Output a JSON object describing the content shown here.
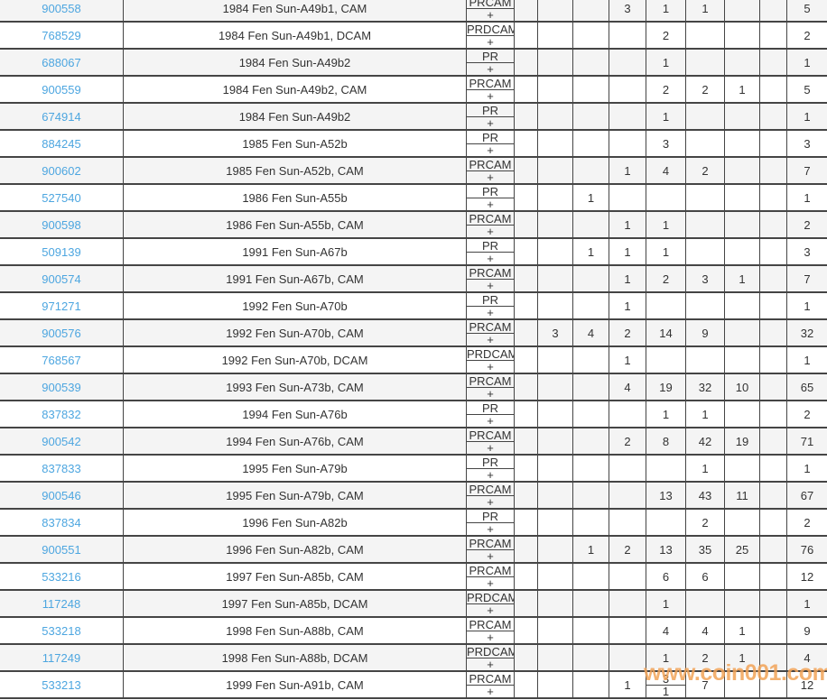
{
  "watermark": {
    "text": "www.coin001.com",
    "color": "#f2a458"
  },
  "colors": {
    "link": "#4da6e0",
    "border": "#454545",
    "stripe": "#f4f4f4",
    "text": "#333333"
  },
  "table": {
    "plus_label": "+",
    "rows": [
      {
        "id": "900558",
        "description": "1984 Fen Sun-A49b1, CAM",
        "designation": "PRCAM",
        "grades": [
          "",
          "",
          "",
          "3",
          "1",
          "1",
          "",
          ""
        ],
        "total": "5"
      },
      {
        "id": "768529",
        "description": "1984 Fen Sun-A49b1, DCAM",
        "designation": "PRDCAM",
        "grades": [
          "",
          "",
          "",
          "",
          "2",
          "",
          "",
          ""
        ],
        "total": "2"
      },
      {
        "id": "688067",
        "description": "1984 Fen Sun-A49b2",
        "designation": "PR",
        "grades": [
          "",
          "",
          "",
          "",
          "1",
          "",
          "",
          ""
        ],
        "total": "1"
      },
      {
        "id": "900559",
        "description": "1984 Fen Sun-A49b2, CAM",
        "designation": "PRCAM",
        "grades": [
          "",
          "",
          "",
          "",
          "2",
          "2",
          "1",
          ""
        ],
        "total": "5"
      },
      {
        "id": "674914",
        "description": "1984 Fen Sun-A49b2",
        "designation": "PR",
        "grades": [
          "",
          "",
          "",
          "",
          "1",
          "",
          "",
          ""
        ],
        "total": "1"
      },
      {
        "id": "884245",
        "description": "1985 Fen Sun-A52b",
        "designation": "PR",
        "grades": [
          "",
          "",
          "",
          "",
          "3",
          "",
          "",
          ""
        ],
        "total": "3"
      },
      {
        "id": "900602",
        "description": "1985 Fen Sun-A52b, CAM",
        "designation": "PRCAM",
        "grades": [
          "",
          "",
          "",
          "1",
          "4",
          "2",
          "",
          ""
        ],
        "total": "7"
      },
      {
        "id": "527540",
        "description": "1986 Fen Sun-A55b",
        "designation": "PR",
        "grades": [
          "",
          "",
          "1",
          "",
          "",
          "",
          "",
          ""
        ],
        "total": "1"
      },
      {
        "id": "900598",
        "description": "1986 Fen Sun-A55b, CAM",
        "designation": "PRCAM",
        "grades": [
          "",
          "",
          "",
          "1",
          "1",
          "",
          "",
          ""
        ],
        "total": "2"
      },
      {
        "id": "509139",
        "description": "1991 Fen Sun-A67b",
        "designation": "PR",
        "grades": [
          "",
          "",
          "1",
          "1",
          "1",
          "",
          "",
          ""
        ],
        "total": "3"
      },
      {
        "id": "900574",
        "description": "1991 Fen Sun-A67b, CAM",
        "designation": "PRCAM",
        "grades": [
          "",
          "",
          "",
          "1",
          "2",
          "3",
          "1",
          ""
        ],
        "total": "7"
      },
      {
        "id": "971271",
        "description": "1992 Fen Sun-A70b",
        "designation": "PR",
        "grades": [
          "",
          "",
          "",
          "1",
          "",
          "",
          "",
          ""
        ],
        "total": "1"
      },
      {
        "id": "900576",
        "description": "1992 Fen Sun-A70b, CAM",
        "designation": "PRCAM",
        "grades": [
          "",
          "3",
          "4",
          "2",
          "14",
          "9",
          "",
          ""
        ],
        "total": "32"
      },
      {
        "id": "768567",
        "description": "1992 Fen Sun-A70b, DCAM",
        "designation": "PRDCAM",
        "grades": [
          "",
          "",
          "",
          "1",
          "",
          "",
          "",
          ""
        ],
        "total": "1"
      },
      {
        "id": "900539",
        "description": "1993 Fen Sun-A73b, CAM",
        "designation": "PRCAM",
        "grades": [
          "",
          "",
          "",
          "4",
          "19",
          "32",
          "10",
          ""
        ],
        "total": "65"
      },
      {
        "id": "837832",
        "description": "1994 Fen Sun-A76b",
        "designation": "PR",
        "grades": [
          "",
          "",
          "",
          "",
          "1",
          "1",
          "",
          ""
        ],
        "total": "2"
      },
      {
        "id": "900542",
        "description": "1994 Fen Sun-A76b, CAM",
        "designation": "PRCAM",
        "grades": [
          "",
          "",
          "",
          "2",
          "8",
          "42",
          "19",
          ""
        ],
        "total": "71"
      },
      {
        "id": "837833",
        "description": "1995 Fen Sun-A79b",
        "designation": "PR",
        "grades": [
          "",
          "",
          "",
          "",
          "",
          "1",
          "",
          ""
        ],
        "total": "1"
      },
      {
        "id": "900546",
        "description": "1995 Fen Sun-A79b, CAM",
        "designation": "PRCAM",
        "grades": [
          "",
          "",
          "",
          "",
          "13",
          "43",
          "11",
          ""
        ],
        "total": "67"
      },
      {
        "id": "837834",
        "description": "1996 Fen Sun-A82b",
        "designation": "PR",
        "grades": [
          "",
          "",
          "",
          "",
          "",
          "2",
          "",
          ""
        ],
        "total": "2"
      },
      {
        "id": "900551",
        "description": "1996 Fen Sun-A82b, CAM",
        "designation": "PRCAM",
        "grades": [
          "",
          "",
          "1",
          "2",
          "13",
          "35",
          "25",
          ""
        ],
        "total": "76"
      },
      {
        "id": "533216",
        "description": "1997 Fen Sun-A85b, CAM",
        "designation": "PRCAM",
        "grades": [
          "",
          "",
          "",
          "",
          "6",
          "6",
          "",
          ""
        ],
        "total": "12"
      },
      {
        "id": "117248",
        "description": "1997 Fen Sun-A85b, DCAM",
        "designation": "PRDCAM",
        "grades": [
          "",
          "",
          "",
          "",
          "1",
          "",
          "",
          ""
        ],
        "total": "1"
      },
      {
        "id": "533218",
        "description": "1998 Fen Sun-A88b, CAM",
        "designation": "PRCAM",
        "grades": [
          "",
          "",
          "",
          "",
          "4",
          "4",
          "1",
          ""
        ],
        "total": "9"
      },
      {
        "id": "117249",
        "description": "1998 Fen Sun-A88b, DCAM",
        "designation": "PRDCAM",
        "grades": [
          "",
          "",
          "",
          "",
          "1",
          "2",
          "1",
          ""
        ],
        "total": "4"
      },
      {
        "id": "533213",
        "description": "1999 Fen Sun-A91b, CAM",
        "designation": "PRCAM",
        "grades": [
          "",
          "",
          "",
          "1",
          {
            "top": "3",
            "bottom": "1"
          },
          "7",
          "",
          ""
        ],
        "total": "12"
      }
    ]
  }
}
